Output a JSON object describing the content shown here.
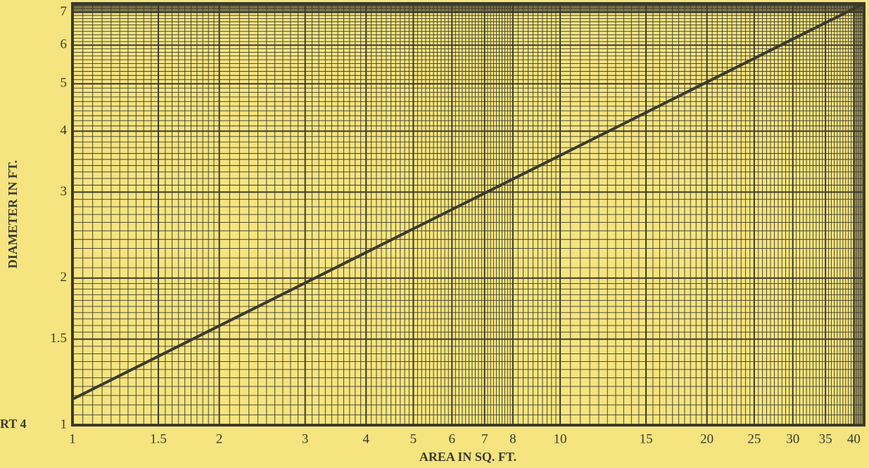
{
  "chart_data": {
    "type": "line",
    "x_label": "AREA IN SQ. FT.",
    "y_label": "DIAMETER IN FT.",
    "annotation": "RT 4",
    "x": [
      1,
      42
    ],
    "series": [
      {
        "color": "#3b3a2c",
        "values": [
          1.13,
          7.3
        ]
      }
    ],
    "xlim": [
      1,
      42
    ],
    "ylim": [
      1,
      7.3
    ],
    "xticks": [
      1,
      1.5,
      2,
      3,
      4,
      5,
      6,
      7,
      8,
      10,
      15,
      20,
      25,
      30,
      35,
      40
    ],
    "yticks": [
      1,
      1.5,
      2,
      3,
      4,
      5,
      6,
      7
    ],
    "xscale": "log",
    "yscale": "log",
    "grid": true
  }
}
